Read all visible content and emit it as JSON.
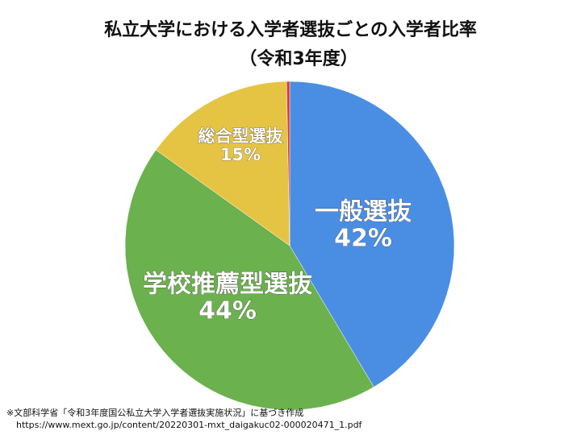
{
  "chart_data": {
    "type": "pie",
    "title": "私立大学における入学者選抜ごとの入学者比率",
    "subtitle": "（令和3年度）",
    "categories": [
      "一般選抜",
      "学校推薦型選抜",
      "総合型選抜",
      null
    ],
    "values": [
      42,
      44,
      15,
      0.3
    ],
    "value_labels": [
      "42%",
      "44%",
      "15%",
      null
    ],
    "colors": [
      "#4a8ee4",
      "#6bb14d",
      "#e6c443",
      "#e0352f"
    ],
    "footnotes": [
      "※文部科学省「令和3年度国公私立大学入学者選抜実施状況」に基づき作成",
      "https://www.mext.go.jp/content/20220301-mxt_daigakuc02-000020471_1.pdf"
    ]
  }
}
